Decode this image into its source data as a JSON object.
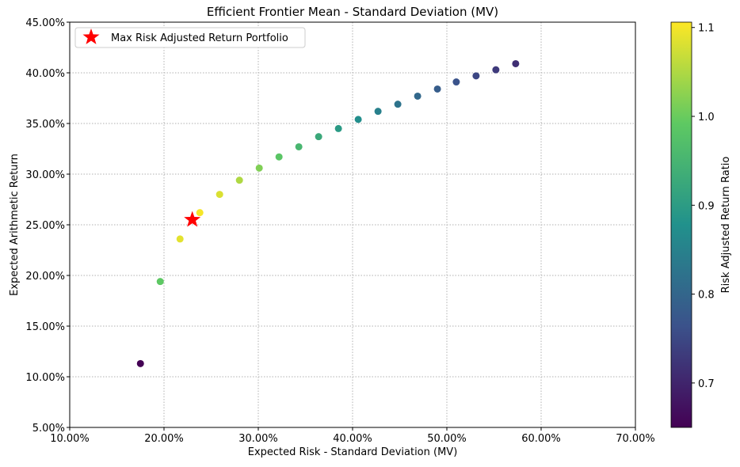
{
  "chart_data": {
    "type": "scatter",
    "title": "Efficient Frontier Mean - Standard Deviation (MV)",
    "xlabel": "Expected Risk - Standard Deviation (MV)",
    "ylabel": "Expected Arithmetic Return",
    "xlim": [
      10,
      70
    ],
    "ylim": [
      5,
      45
    ],
    "xticks": [
      "10.00%",
      "20.00%",
      "30.00%",
      "40.00%",
      "50.00%",
      "60.00%",
      "70.00%"
    ],
    "yticks": [
      "5.00%",
      "10.00%",
      "15.00%",
      "20.00%",
      "25.00%",
      "30.00%",
      "35.00%",
      "40.00%",
      "45.00%"
    ],
    "grid": true,
    "points": [
      {
        "x": 17.5,
        "y": 11.3
      },
      {
        "x": 19.6,
        "y": 19.4
      },
      {
        "x": 21.7,
        "y": 23.6
      },
      {
        "x": 23.8,
        "y": 26.2
      },
      {
        "x": 25.9,
        "y": 28.0
      },
      {
        "x": 28.0,
        "y": 29.4
      },
      {
        "x": 30.1,
        "y": 30.6
      },
      {
        "x": 32.2,
        "y": 31.7
      },
      {
        "x": 34.3,
        "y": 32.7
      },
      {
        "x": 36.4,
        "y": 33.7
      },
      {
        "x": 38.5,
        "y": 34.5
      },
      {
        "x": 40.6,
        "y": 35.4
      },
      {
        "x": 42.7,
        "y": 36.2
      },
      {
        "x": 44.8,
        "y": 36.9
      },
      {
        "x": 46.9,
        "y": 37.7
      },
      {
        "x": 49.0,
        "y": 38.4
      },
      {
        "x": 51.0,
        "y": 39.1
      },
      {
        "x": 53.1,
        "y": 39.7
      },
      {
        "x": 55.2,
        "y": 40.3
      },
      {
        "x": 57.3,
        "y": 40.9
      }
    ],
    "highlight": {
      "name": "Max Risk Adjusted Return Portfolio",
      "x": 23.0,
      "y": 25.5,
      "color": "#ff0000",
      "marker": "star"
    },
    "legend": {
      "placement": "top-left",
      "entries": [
        "Max Risk Adjusted Return Portfolio"
      ]
    },
    "colorbar": {
      "label": "Risk Adjusted Return Ratio",
      "range": [
        0.65,
        1.106
      ],
      "ticks": [
        "0.7",
        "0.8",
        "0.9",
        "1.0",
        "1.1"
      ],
      "colormap": "viridis"
    }
  }
}
